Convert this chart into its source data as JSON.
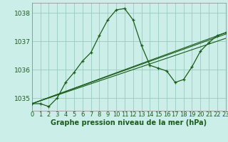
{
  "title": "Graphe pression niveau de la mer (hPa)",
  "bg_color": "#cceee8",
  "grid_color": "#99ccbb",
  "line_color": "#1a5c1a",
  "series_main": {
    "x": [
      0,
      1,
      2,
      3,
      4,
      5,
      6,
      7,
      8,
      9,
      10,
      11,
      12,
      13,
      14,
      15,
      16,
      17,
      18,
      19,
      20,
      21,
      22,
      23
    ],
    "y": [
      1034.8,
      1034.8,
      1034.7,
      1035.0,
      1035.55,
      1035.9,
      1036.3,
      1036.6,
      1037.2,
      1037.75,
      1038.1,
      1038.15,
      1037.75,
      1036.85,
      1036.15,
      1036.05,
      1035.95,
      1035.55,
      1035.65,
      1036.1,
      1036.65,
      1036.95,
      1037.2,
      1037.3
    ]
  },
  "series_lines": [
    {
      "x": [
        0,
        23
      ],
      "y": [
        1034.8,
        1037.3
      ]
    },
    {
      "x": [
        0,
        23
      ],
      "y": [
        1034.8,
        1037.1
      ]
    },
    {
      "x": [
        0,
        23
      ],
      "y": [
        1034.8,
        1037.25
      ]
    }
  ],
  "xlim": [
    0,
    23
  ],
  "ylim": [
    1034.55,
    1038.35
  ],
  "yticks": [
    1035,
    1036,
    1037,
    1038
  ],
  "xticks": [
    0,
    1,
    2,
    3,
    4,
    5,
    6,
    7,
    8,
    9,
    10,
    11,
    12,
    13,
    14,
    15,
    16,
    17,
    18,
    19,
    20,
    21,
    22,
    23
  ],
  "tick_fontsize": 6.0,
  "title_fontsize": 7.0,
  "figsize": [
    3.2,
    2.0
  ],
  "dpi": 100
}
